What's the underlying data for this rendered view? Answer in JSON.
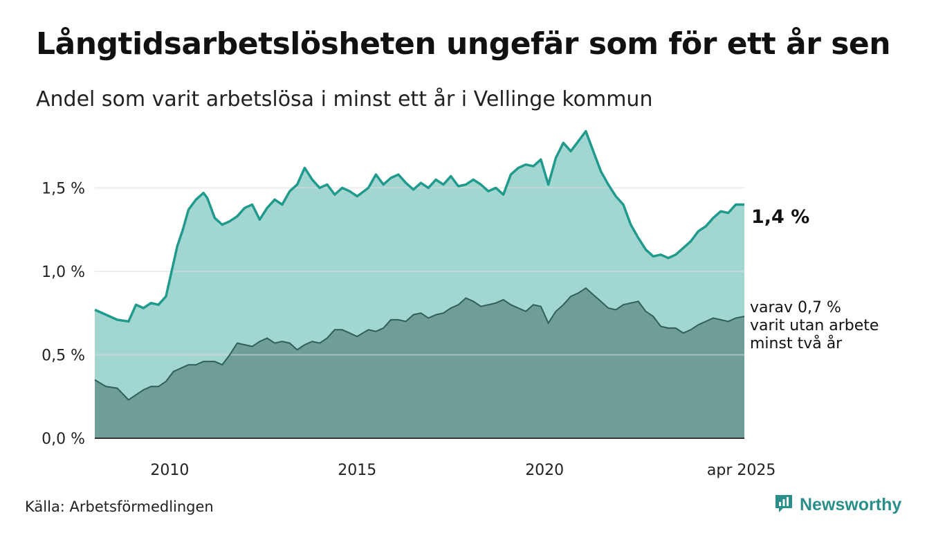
{
  "title": "Långtidsarbetslösheten ungefär som för ett år sen",
  "subtitle": "Andel som varit arbetslösa i minst ett år i Vellinge kommun",
  "source": "Källa: Arbetsförmedlingen",
  "brand": "Newsworthy",
  "end_label": "1,4 %",
  "side_note": [
    "varav 0,7 %",
    "varit utan arbete",
    "minst två år"
  ],
  "colors": {
    "upper_line": "#1f9a8c",
    "upper_fill": "#a2d6d0",
    "lower_fill": "#6f9e97",
    "lower_line": "#2f5f58",
    "grid": "#dddddd",
    "brand": "#2a8f8a"
  },
  "chart_data": {
    "type": "area",
    "title": "Långtidsarbetslösheten ungefär som för ett år sen",
    "subtitle": "Andel som varit arbetslösa i minst ett år i Vellinge kommun",
    "xlabel": "",
    "ylabel": "",
    "x_range": [
      2008.0,
      2025.33
    ],
    "ylim": [
      0,
      1.9
    ],
    "y_ticks": [
      0,
      0.5,
      1.0,
      1.5
    ],
    "y_tick_labels": [
      "0,0 %",
      "0,5 %",
      "1,0 %",
      "1,5 %"
    ],
    "x_ticks": [
      2010,
      2015,
      2020,
      2025.25
    ],
    "x_tick_labels": [
      "2010",
      "2015",
      "2020",
      "apr 2025"
    ],
    "grid": "horizontal",
    "series": [
      {
        "values_x": [
          2008.0,
          2008.3,
          2008.6,
          2008.9,
          2009.1,
          2009.3,
          2009.5,
          2009.7,
          2009.9,
          2010.1,
          2010.2,
          2010.35,
          2010.5,
          2010.7,
          2010.9,
          2011.0,
          2011.2,
          2011.4,
          2011.6,
          2011.8,
          2012.0,
          2012.2,
          2012.4,
          2012.6,
          2012.8,
          2013.0,
          2013.2,
          2013.4,
          2013.6,
          2013.8,
          2014.0,
          2014.2,
          2014.4,
          2014.6,
          2014.8,
          2015.0,
          2015.3,
          2015.5,
          2015.7,
          2015.9,
          2016.1,
          2016.3,
          2016.5,
          2016.7,
          2016.9,
          2017.1,
          2017.3,
          2017.5,
          2017.7,
          2017.9,
          2018.1,
          2018.3,
          2018.5,
          2018.7,
          2018.9,
          2019.1,
          2019.3,
          2019.5,
          2019.7,
          2019.9,
          2020.1,
          2020.3,
          2020.5,
          2020.7,
          2020.9,
          2021.1,
          2021.3,
          2021.5,
          2021.7,
          2021.9,
          2022.1,
          2022.3,
          2022.5,
          2022.7,
          2022.9,
          2023.1,
          2023.3,
          2023.5,
          2023.7,
          2023.9,
          2024.1,
          2024.3,
          2024.5,
          2024.7,
          2024.9,
          2025.1,
          2025.33
        ],
        "values": [
          0.77,
          0.74,
          0.71,
          0.7,
          0.8,
          0.78,
          0.81,
          0.8,
          0.85,
          1.05,
          1.15,
          1.25,
          1.37,
          1.43,
          1.47,
          1.44,
          1.32,
          1.28,
          1.3,
          1.33,
          1.38,
          1.4,
          1.31,
          1.38,
          1.43,
          1.4,
          1.48,
          1.52,
          1.62,
          1.55,
          1.5,
          1.52,
          1.46,
          1.5,
          1.48,
          1.45,
          1.5,
          1.58,
          1.52,
          1.56,
          1.58,
          1.53,
          1.49,
          1.53,
          1.5,
          1.55,
          1.52,
          1.57,
          1.51,
          1.52,
          1.55,
          1.52,
          1.48,
          1.5,
          1.46,
          1.58,
          1.62,
          1.64,
          1.63,
          1.67,
          1.52,
          1.68,
          1.77,
          1.72,
          1.78,
          1.84,
          1.72,
          1.6,
          1.52,
          1.45,
          1.4,
          1.28,
          1.2,
          1.13,
          1.09,
          1.1,
          1.08,
          1.1,
          1.14,
          1.18,
          1.24,
          1.27,
          1.32,
          1.36,
          1.35,
          1.4,
          1.4
        ]
      },
      {
        "values_x": [
          2008.0,
          2008.3,
          2008.6,
          2008.9,
          2009.1,
          2009.3,
          2009.5,
          2009.7,
          2009.9,
          2010.1,
          2010.3,
          2010.5,
          2010.7,
          2010.9,
          2011.2,
          2011.4,
          2011.6,
          2011.8,
          2012.0,
          2012.2,
          2012.4,
          2012.6,
          2012.8,
          2013.0,
          2013.2,
          2013.4,
          2013.6,
          2013.8,
          2014.0,
          2014.2,
          2014.4,
          2014.6,
          2014.8,
          2015.0,
          2015.3,
          2015.5,
          2015.7,
          2015.9,
          2016.1,
          2016.3,
          2016.5,
          2016.7,
          2016.9,
          2017.1,
          2017.3,
          2017.5,
          2017.7,
          2017.9,
          2018.1,
          2018.3,
          2018.5,
          2018.7,
          2018.9,
          2019.1,
          2019.3,
          2019.5,
          2019.7,
          2019.9,
          2020.1,
          2020.3,
          2020.5,
          2020.7,
          2020.9,
          2021.1,
          2021.3,
          2021.5,
          2021.7,
          2021.9,
          2022.1,
          2022.3,
          2022.5,
          2022.7,
          2022.9,
          2023.1,
          2023.3,
          2023.5,
          2023.7,
          2023.9,
          2024.1,
          2024.3,
          2024.5,
          2024.7,
          2024.9,
          2025.1,
          2025.33
        ],
        "values": [
          0.35,
          0.31,
          0.3,
          0.23,
          0.26,
          0.29,
          0.31,
          0.31,
          0.34,
          0.4,
          0.42,
          0.44,
          0.44,
          0.46,
          0.46,
          0.44,
          0.5,
          0.57,
          0.56,
          0.55,
          0.58,
          0.6,
          0.57,
          0.58,
          0.57,
          0.53,
          0.56,
          0.58,
          0.57,
          0.6,
          0.65,
          0.65,
          0.63,
          0.61,
          0.65,
          0.64,
          0.66,
          0.71,
          0.71,
          0.7,
          0.74,
          0.75,
          0.72,
          0.74,
          0.75,
          0.78,
          0.8,
          0.84,
          0.82,
          0.79,
          0.8,
          0.81,
          0.83,
          0.8,
          0.78,
          0.76,
          0.8,
          0.79,
          0.69,
          0.76,
          0.8,
          0.85,
          0.87,
          0.9,
          0.86,
          0.82,
          0.78,
          0.77,
          0.8,
          0.81,
          0.82,
          0.76,
          0.73,
          0.67,
          0.66,
          0.66,
          0.63,
          0.65,
          0.68,
          0.7,
          0.72,
          0.71,
          0.7,
          0.72,
          0.73
        ]
      }
    ]
  }
}
